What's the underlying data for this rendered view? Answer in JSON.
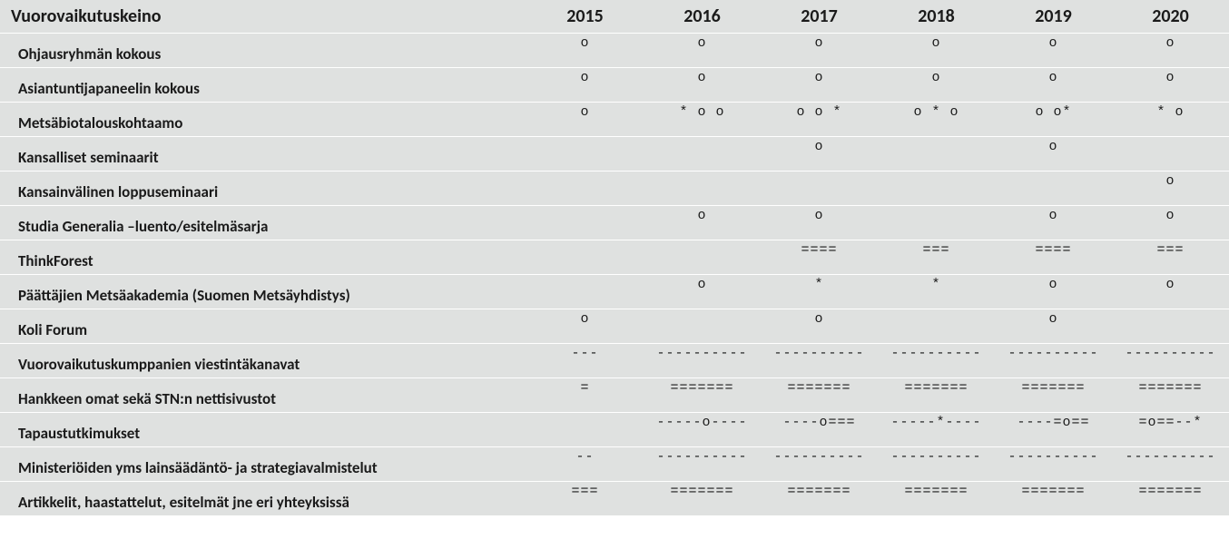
{
  "table": {
    "header_label": "Vuorovaikutuskeino",
    "years": [
      "2015",
      "2016",
      "2017",
      "2018",
      "2019",
      "2020"
    ],
    "header_fontsize": 20,
    "header_fontweight": "bold",
    "row_label_fontsize": 17,
    "row_label_fontweight": "bold",
    "cell_fontsize": 15,
    "background_color": "#dfe1e0",
    "text_color": "#1a1a1a",
    "border_color": "#ffffff",
    "rows": [
      {
        "label": "Ohjausryhmän kokous",
        "cells": [
          "o",
          "o",
          "o",
          "o",
          "o",
          "o"
        ]
      },
      {
        "label": "Asiantuntijapaneelin kokous",
        "cells": [
          "o",
          "o",
          "o",
          "o",
          "o",
          "o"
        ]
      },
      {
        "label": "Metsäbiotalouskohtaamo",
        "cells": [
          "o",
          "*  o   o",
          "o  o *",
          "o  * o",
          "o   o*",
          "*   o"
        ]
      },
      {
        "label": "Kansalliset seminaarit",
        "cells": [
          "",
          "",
          "o",
          "",
          "o",
          ""
        ]
      },
      {
        "label": "Kansainvälinen loppuseminaari",
        "cells": [
          "",
          "",
          "",
          "",
          "",
          "o"
        ]
      },
      {
        "label": "Studia Generalia –luento/esitelmäsarja",
        "cells": [
          "",
          "o",
          "o",
          "",
          "o",
          "o"
        ]
      },
      {
        "label": "ThinkForest",
        "cells": [
          "",
          "",
          "====",
          "===",
          "====",
          "==="
        ]
      },
      {
        "label": "Päättäjien Metsäakademia (Suomen Metsäyhdistys)",
        "cells": [
          "",
          "o",
          "*",
          "*",
          "o",
          "o"
        ]
      },
      {
        "label": "Koli Forum",
        "cells": [
          "o",
          "",
          "o",
          "",
          "o",
          ""
        ]
      },
      {
        "label": "Vuorovaikutuskumppanien viestintäkanavat",
        "cells": [
          "---",
          "----------",
          "----------",
          "----------",
          "----------",
          "----------"
        ]
      },
      {
        "label": "Hankkeen omat sekä STN:n nettisivustot",
        "cells": [
          "=",
          "=======",
          "=======",
          "=======",
          "=======",
          "======="
        ]
      },
      {
        "label": "Tapaustutkimukset",
        "cells": [
          "",
          "-----o----",
          "----o===",
          "-----*----",
          "----=o==",
          "=o==--*"
        ]
      },
      {
        "label": "Ministeriöiden yms lainsäädäntö- ja strategiavalmistelut",
        "cells": [
          "--",
          "----------",
          "----------",
          "----------",
          "----------",
          "----------"
        ]
      },
      {
        "label": "Artikkelit, haastattelut, esitelmät jne eri yhteyksissä",
        "cells": [
          "===",
          "=======",
          "=======",
          "=======",
          "=======",
          "======="
        ]
      }
    ]
  }
}
